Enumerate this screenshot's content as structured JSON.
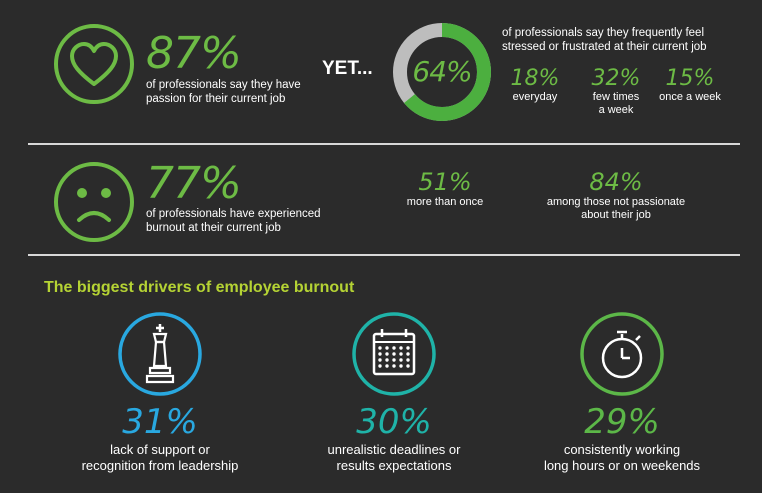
{
  "section1": {
    "passion_pct": "87%",
    "passion_text_line1": "of professionals say they have",
    "passion_text_line2": "passion for their current job",
    "yet": "YET...",
    "donut_pct": "64%",
    "donut_value": 64,
    "donut_color": "#4caf3f",
    "donut_rest_color": "#bdbdbd",
    "stress_text_line1": "of professionals say they frequently feel",
    "stress_text_line2": "stressed or frustrated at their current job",
    "breakdown": [
      {
        "pct": "18%",
        "label_line1": "everyday",
        "label_line2": ""
      },
      {
        "pct": "32%",
        "label_line1": "few times",
        "label_line2": "a week"
      },
      {
        "pct": "15%",
        "label_line1": "once a week",
        "label_line2": ""
      }
    ]
  },
  "section2": {
    "burnout_pct": "77%",
    "burnout_text_line1": "of professionals have experienced",
    "burnout_text_line2": "burnout at their current job",
    "stats": [
      {
        "pct": "51%",
        "label_line1": "more than once",
        "label_line2": ""
      },
      {
        "pct": "84%",
        "label_line1": "among those not passionate",
        "label_line2": "about their job"
      }
    ]
  },
  "drivers": {
    "heading": "The biggest drivers of employee burnout",
    "heading_color": "#b5d334",
    "items": [
      {
        "icon": "chess-king-icon",
        "color": "#29a8e0",
        "pct": "31%",
        "label_line1": "lack of support or",
        "label_line2": "recognition from leadership"
      },
      {
        "icon": "calendar-icon",
        "color": "#1fb3a8",
        "pct": "30%",
        "label_line1": "unrealistic deadlines or",
        "label_line2": "results expectations"
      },
      {
        "icon": "stopwatch-icon",
        "color": "#5cb748",
        "pct": "29%",
        "label_line1": "consistently working",
        "label_line2": "long hours or on weekends"
      }
    ]
  }
}
